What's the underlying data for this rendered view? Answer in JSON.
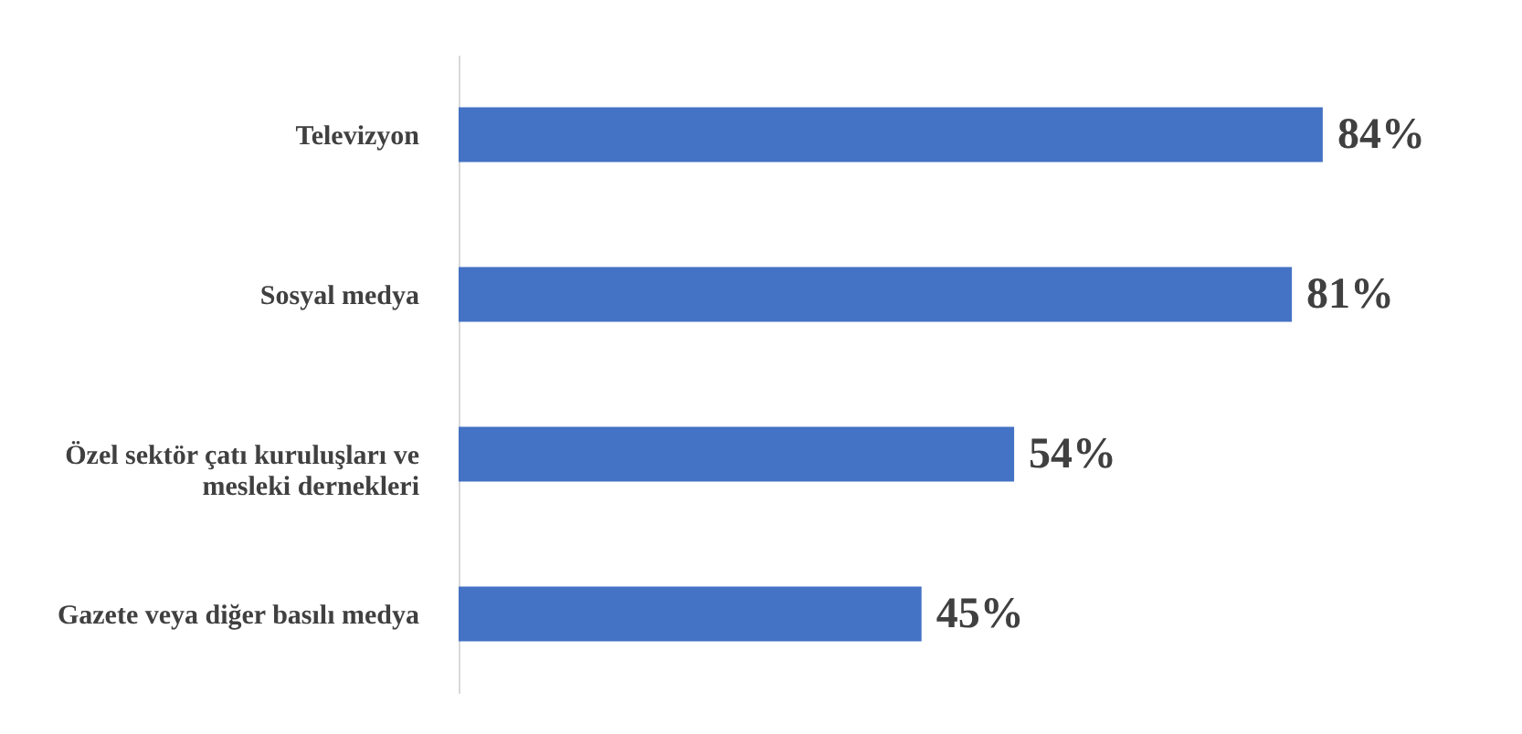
{
  "chart_data": {
    "type": "bar",
    "orientation": "horizontal",
    "categories": [
      "Televizyon",
      "Sosyal medya",
      "Özel sektör çatı kuruluşları ve mesleki dernekleri",
      "Gazete veya diğer basılı medya"
    ],
    "values": [
      84,
      81,
      54,
      45
    ],
    "value_labels": [
      "84%",
      "81%",
      "54%",
      "45%"
    ],
    "color": "#4472c4"
  }
}
